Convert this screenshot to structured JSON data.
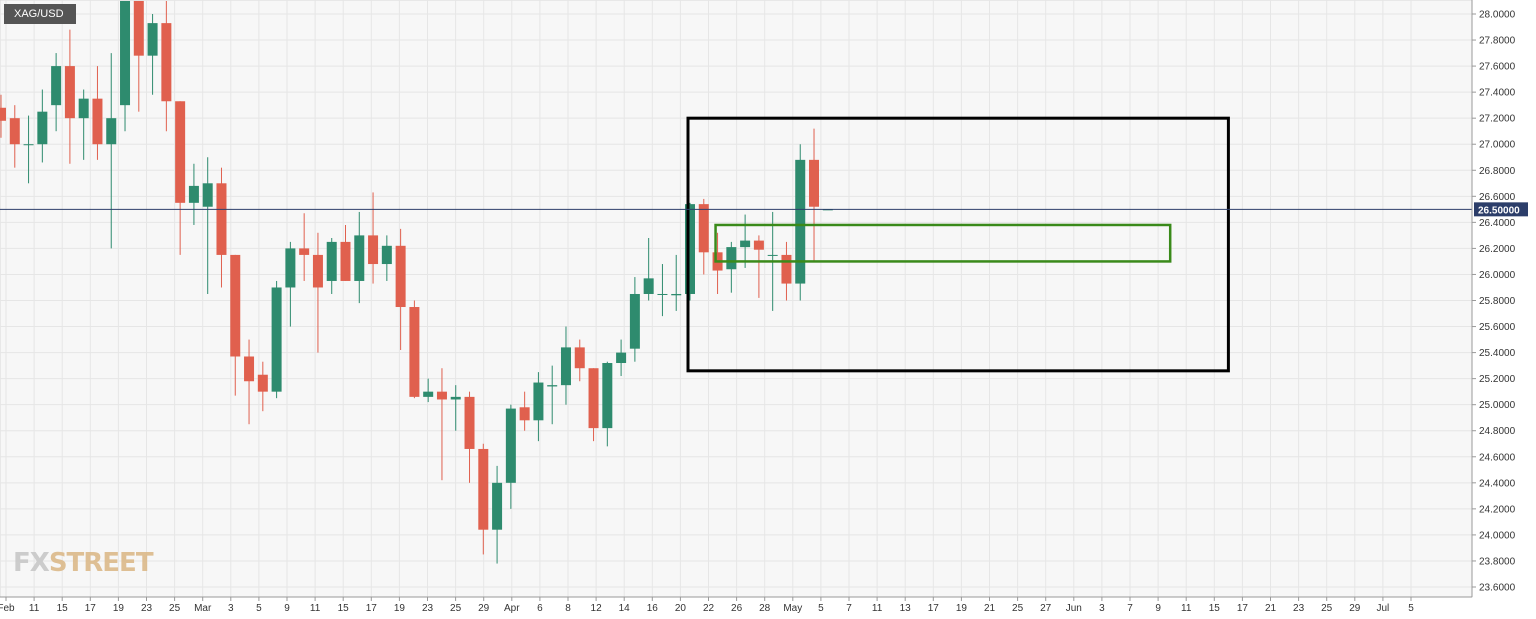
{
  "symbol": "XAG/USD",
  "logo": {
    "fx": "FX",
    "street": "STREET"
  },
  "colors": {
    "up": "#2e8b6e",
    "down": "#e0604e",
    "grid": "#e6e6e6",
    "price_line": "#2c3e6a",
    "badge_bg": "#2c3e6a",
    "rect_black": "#000000",
    "rect_green": "#3a8a1a"
  },
  "chart_data": {
    "type": "candlestick",
    "ylim": [
      23.55,
      28.1
    ],
    "y_ticks": [
      "28.0000",
      "27.8000",
      "27.6000",
      "27.4000",
      "27.2000",
      "27.0000",
      "26.8000",
      "26.6000",
      "26.4000",
      "26.2000",
      "26.0000",
      "25.8000",
      "25.6000",
      "25.4000",
      "25.2000",
      "25.0000",
      "24.8000",
      "24.6000",
      "24.4000",
      "24.2000",
      "24.0000",
      "23.8000",
      "23.6000"
    ],
    "x_labels": [
      "Feb",
      "11",
      "15",
      "17",
      "19",
      "23",
      "25",
      "Mar",
      "3",
      "5",
      "9",
      "11",
      "15",
      "17",
      "19",
      "23",
      "25",
      "29",
      "Apr",
      "6",
      "8",
      "12",
      "14",
      "16",
      "20",
      "22",
      "26",
      "28",
      "May",
      "5",
      "7",
      "11",
      "13",
      "17",
      "19",
      "21",
      "25",
      "27",
      "Jun",
      "3",
      "7",
      "9",
      "11",
      "15",
      "17",
      "21",
      "23",
      "25",
      "29",
      "Jul",
      "5"
    ],
    "current_price": "26.50000",
    "candles": [
      {
        "o": 27.28,
        "h": 27.38,
        "l": 27.05,
        "c": 27.18
      },
      {
        "o": 27.2,
        "h": 27.3,
        "l": 26.82,
        "c": 27.0
      },
      {
        "o": 27.0,
        "h": 27.22,
        "l": 26.7,
        "c": 27.0
      },
      {
        "o": 27.0,
        "h": 27.42,
        "l": 26.86,
        "c": 27.25
      },
      {
        "o": 27.3,
        "h": 27.7,
        "l": 27.1,
        "c": 27.6
      },
      {
        "o": 27.6,
        "h": 27.88,
        "l": 26.85,
        "c": 27.2
      },
      {
        "o": 27.2,
        "h": 27.42,
        "l": 26.88,
        "c": 27.35
      },
      {
        "o": 27.35,
        "h": 27.6,
        "l": 26.88,
        "c": 27.0
      },
      {
        "o": 27.0,
        "h": 27.7,
        "l": 26.2,
        "c": 27.2
      },
      {
        "o": 27.3,
        "h": 28.1,
        "l": 27.1,
        "c": 28.1
      },
      {
        "o": 28.1,
        "h": 28.1,
        "l": 27.25,
        "c": 27.68
      },
      {
        "o": 27.68,
        "h": 28.0,
        "l": 27.38,
        "c": 27.93
      },
      {
        "o": 27.93,
        "h": 28.1,
        "l": 27.1,
        "c": 27.33
      },
      {
        "o": 27.33,
        "h": 27.33,
        "l": 26.15,
        "c": 26.55
      },
      {
        "o": 26.55,
        "h": 26.85,
        "l": 26.38,
        "c": 26.68
      },
      {
        "o": 26.52,
        "h": 26.9,
        "l": 25.85,
        "c": 26.7
      },
      {
        "o": 26.7,
        "h": 26.82,
        "l": 25.9,
        "c": 26.15
      },
      {
        "o": 26.15,
        "h": 26.15,
        "l": 25.07,
        "c": 25.37
      },
      {
        "o": 25.37,
        "h": 25.5,
        "l": 24.85,
        "c": 25.18
      },
      {
        "o": 25.23,
        "h": 25.33,
        "l": 24.95,
        "c": 25.1
      },
      {
        "o": 25.1,
        "h": 25.95,
        "l": 25.05,
        "c": 25.9
      },
      {
        "o": 25.9,
        "h": 26.25,
        "l": 25.6,
        "c": 26.2
      },
      {
        "o": 26.2,
        "h": 26.47,
        "l": 25.95,
        "c": 26.15
      },
      {
        "o": 26.15,
        "h": 26.32,
        "l": 25.4,
        "c": 25.9
      },
      {
        "o": 25.95,
        "h": 26.28,
        "l": 25.85,
        "c": 26.25
      },
      {
        "o": 26.25,
        "h": 26.38,
        "l": 25.95,
        "c": 25.95
      },
      {
        "o": 25.95,
        "h": 26.48,
        "l": 25.78,
        "c": 26.3
      },
      {
        "o": 26.3,
        "h": 26.63,
        "l": 25.93,
        "c": 26.08
      },
      {
        "o": 26.08,
        "h": 26.3,
        "l": 25.95,
        "c": 26.22
      },
      {
        "o": 26.22,
        "h": 26.35,
        "l": 25.42,
        "c": 25.75
      },
      {
        "o": 25.75,
        "h": 25.8,
        "l": 25.05,
        "c": 25.06
      },
      {
        "o": 25.06,
        "h": 25.2,
        "l": 25.02,
        "c": 25.1
      },
      {
        "o": 25.1,
        "h": 25.28,
        "l": 24.42,
        "c": 25.04
      },
      {
        "o": 25.04,
        "h": 25.15,
        "l": 24.8,
        "c": 25.06
      },
      {
        "o": 25.06,
        "h": 25.1,
        "l": 24.4,
        "c": 24.66
      },
      {
        "o": 24.66,
        "h": 24.7,
        "l": 23.85,
        "c": 24.04
      },
      {
        "o": 24.04,
        "h": 24.53,
        "l": 23.78,
        "c": 24.4
      },
      {
        "o": 24.4,
        "h": 25.0,
        "l": 24.2,
        "c": 24.97
      },
      {
        "o": 24.98,
        "h": 25.1,
        "l": 24.8,
        "c": 24.88
      },
      {
        "o": 24.88,
        "h": 25.25,
        "l": 24.72,
        "c": 25.17
      },
      {
        "o": 25.14,
        "h": 25.3,
        "l": 24.85,
        "c": 25.15
      },
      {
        "o": 25.15,
        "h": 25.6,
        "l": 25.0,
        "c": 25.44
      },
      {
        "o": 25.44,
        "h": 25.5,
        "l": 25.18,
        "c": 25.28
      },
      {
        "o": 25.28,
        "h": 25.28,
        "l": 24.72,
        "c": 24.82
      },
      {
        "o": 24.82,
        "h": 25.33,
        "l": 24.68,
        "c": 25.32
      },
      {
        "o": 25.32,
        "h": 25.5,
        "l": 25.22,
        "c": 25.4
      },
      {
        "o": 25.43,
        "h": 25.98,
        "l": 25.33,
        "c": 25.85
      },
      {
        "o": 25.85,
        "h": 26.28,
        "l": 25.8,
        "c": 25.97
      },
      {
        "o": 25.85,
        "h": 26.08,
        "l": 25.68,
        "c": 25.85
      },
      {
        "o": 25.84,
        "h": 26.15,
        "l": 25.72,
        "c": 25.85
      },
      {
        "o": 25.85,
        "h": 26.55,
        "l": 25.8,
        "c": 26.54
      },
      {
        "o": 26.54,
        "h": 26.58,
        "l": 26.0,
        "c": 26.17
      },
      {
        "o": 26.17,
        "h": 26.32,
        "l": 25.85,
        "c": 26.03
      },
      {
        "o": 26.04,
        "h": 26.25,
        "l": 25.86,
        "c": 26.21
      },
      {
        "o": 26.21,
        "h": 26.46,
        "l": 26.05,
        "c": 26.26
      },
      {
        "o": 26.26,
        "h": 26.3,
        "l": 25.82,
        "c": 26.19
      },
      {
        "o": 26.15,
        "h": 26.48,
        "l": 25.72,
        "c": 26.15
      },
      {
        "o": 26.15,
        "h": 26.25,
        "l": 25.8,
        "c": 25.93
      },
      {
        "o": 25.93,
        "h": 27.0,
        "l": 25.8,
        "c": 26.88
      },
      {
        "o": 26.88,
        "h": 27.12,
        "l": 26.1,
        "c": 26.52
      },
      {
        "o": 26.5,
        "h": 26.5,
        "l": 26.5,
        "c": 26.5
      }
    ],
    "annotations": [
      {
        "shape": "rectangle",
        "color": "black",
        "x_from_candle": 50,
        "x_to_label": "17",
        "y_top": 27.2,
        "y_bottom": 25.26
      },
      {
        "shape": "rectangle",
        "color": "green",
        "x_from_candle": 52,
        "x_to_label": "11",
        "y_top": 26.38,
        "y_bottom": 26.1
      }
    ]
  }
}
